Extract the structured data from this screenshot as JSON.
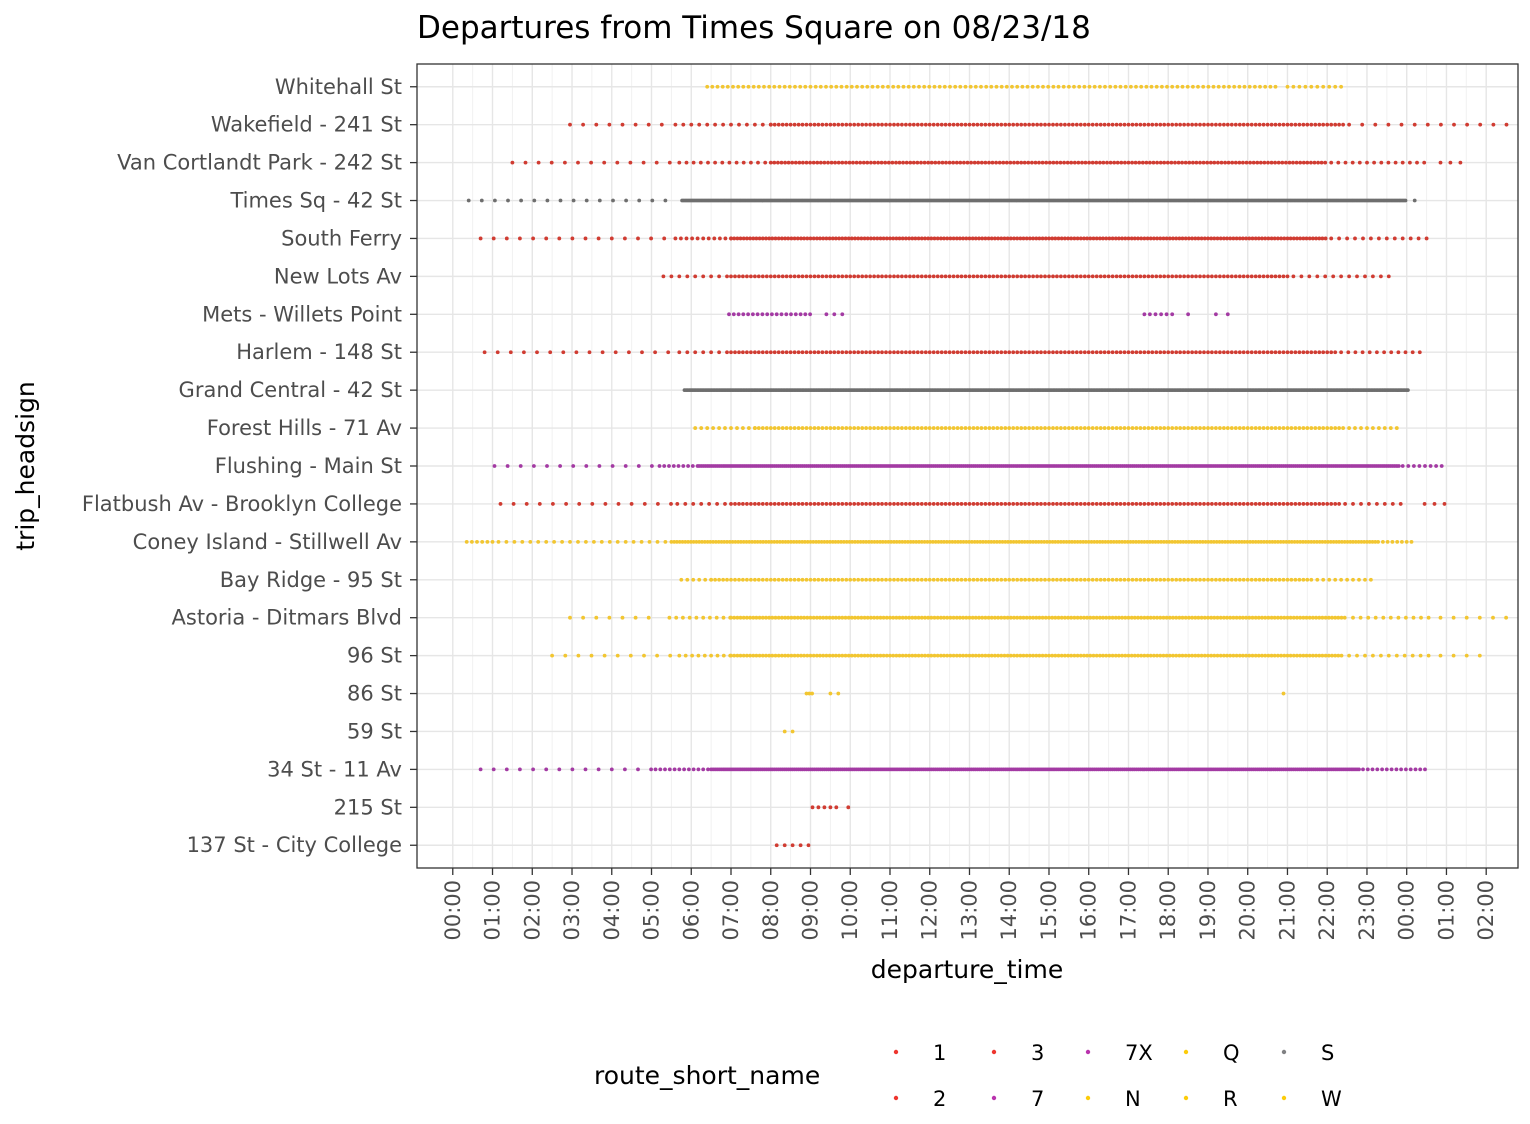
{
  "chart_data": {
    "type": "scatter",
    "title": "Departures from Times Square on 08/23/18",
    "xlabel": "departure_time",
    "ylabel": "trip_headsign",
    "x_unit": "hours",
    "xlim": [
      -0.9,
      26.8
    ],
    "x_ticks": [
      0,
      1,
      2,
      3,
      4,
      5,
      6,
      7,
      8,
      9,
      10,
      11,
      12,
      13,
      14,
      15,
      16,
      17,
      18,
      19,
      20,
      21,
      22,
      23,
      24,
      25,
      26
    ],
    "x_tick_labels": [
      "00:00",
      "01:00",
      "02:00",
      "03:00",
      "04:00",
      "05:00",
      "06:00",
      "07:00",
      "08:00",
      "09:00",
      "10:00",
      "11:00",
      "12:00",
      "13:00",
      "14:00",
      "15:00",
      "16:00",
      "17:00",
      "18:00",
      "19:00",
      "20:00",
      "21:00",
      "22:00",
      "23:00",
      "00:00",
      "01:00",
      "02:00"
    ],
    "categories": [
      "137 St - City College",
      "215 St",
      "34 St - 11 Av",
      "59 St",
      "86 St",
      "96 St",
      "Astoria - Ditmars Blvd",
      "Bay Ridge - 95 St",
      "Coney Island - Stillwell Av",
      "Flatbush Av - Brooklyn College",
      "Flushing - Main St",
      "Forest Hills - 71 Av",
      "Grand Central - 42 St",
      "Harlem - 148 St",
      "Mets - Willets Point",
      "New Lots Av",
      "South Ferry",
      "Times Sq - 42 St",
      "Van Cortlandt Park - 242 St",
      "Wakefield - 241 St",
      "Whitehall St"
    ],
    "grid": true,
    "legend_position": "bottom",
    "legend": {
      "title": "route_short_name",
      "entries": [
        {
          "name": "1",
          "color": "#EE352E"
        },
        {
          "name": "2",
          "color": "#EE352E"
        },
        {
          "name": "3",
          "color": "#EE352E"
        },
        {
          "name": "7",
          "color": "#B933AD"
        },
        {
          "name": "7X",
          "color": "#B933AD"
        },
        {
          "name": "N",
          "color": "#FCCC0A"
        },
        {
          "name": "Q",
          "color": "#FCCC0A"
        },
        {
          "name": "R",
          "color": "#FCCC0A"
        },
        {
          "name": "S",
          "color": "#808183"
        },
        {
          "name": "W",
          "color": "#FCCC0A"
        }
      ]
    },
    "series": [
      {
        "category": "Whitehall St",
        "color": "#F2C631",
        "segments": [
          {
            "start": 6.4,
            "end": 20.8,
            "step": 0.13
          },
          {
            "start": 21.0,
            "end": 22.4,
            "step": 0.15
          }
        ]
      },
      {
        "category": "Wakefield - 241 St",
        "color": "#D03C32",
        "segments": [
          {
            "start": 2.95,
            "end": 5.45,
            "step": 0.33
          },
          {
            "start": 5.6,
            "end": 8.0,
            "step": 0.2
          },
          {
            "start": 8.0,
            "end": 22.4,
            "step": 0.1
          },
          {
            "start": 22.55,
            "end": 26.65,
            "step": 0.33
          }
        ]
      },
      {
        "category": "Van Cortlandt Park - 242 St",
        "color": "#D03C32",
        "segments": [
          {
            "start": 1.5,
            "end": 5.5,
            "step": 0.33
          },
          {
            "start": 5.7,
            "end": 8.0,
            "step": 0.18
          },
          {
            "start": 8.0,
            "end": 22.0,
            "step": 0.09
          },
          {
            "start": 22.1,
            "end": 24.6,
            "step": 0.18
          },
          {
            "start": 24.85,
            "end": 25.35,
            "step": 0.25
          }
        ]
      },
      {
        "category": "Times Sq - 42 St",
        "color": "#6E6E6E",
        "segments": [
          {
            "start": 0.4,
            "end": 5.5,
            "step": 0.33
          },
          {
            "start": 5.77,
            "end": 23.98,
            "step": 0.04
          },
          {
            "start": 24.2,
            "end": 24.2,
            "step": 1
          }
        ]
      },
      {
        "category": "South Ferry",
        "color": "#D03C32",
        "segments": [
          {
            "start": 0.7,
            "end": 5.4,
            "step": 0.33
          },
          {
            "start": 5.6,
            "end": 7.0,
            "step": 0.14
          },
          {
            "start": 7.0,
            "end": 22.0,
            "step": 0.08
          },
          {
            "start": 22.1,
            "end": 24.5,
            "step": 0.2
          }
        ]
      },
      {
        "category": "New Lots Av",
        "color": "#D03C32",
        "segments": [
          {
            "start": 5.3,
            "end": 7.0,
            "step": 0.2
          },
          {
            "start": 7.0,
            "end": 21.0,
            "step": 0.1
          },
          {
            "start": 21.15,
            "end": 23.55,
            "step": 0.2
          }
        ]
      },
      {
        "category": "Mets - Willets Point",
        "color": "#A33AA3",
        "segments": [
          {
            "start": 6.95,
            "end": 9.0,
            "step": 0.12
          },
          {
            "start": 9.4,
            "end": 9.8,
            "step": 0.2
          },
          {
            "start": 17.4,
            "end": 18.1,
            "step": 0.14
          },
          {
            "start": 18.5,
            "end": 18.5,
            "step": 1
          },
          {
            "start": 19.2,
            "end": 19.5,
            "step": 0.3
          }
        ]
      },
      {
        "category": "Harlem - 148 St",
        "color": "#D03C32",
        "segments": [
          {
            "start": 0.8,
            "end": 5.5,
            "step": 0.33
          },
          {
            "start": 5.7,
            "end": 7.0,
            "step": 0.2
          },
          {
            "start": 7.0,
            "end": 22.2,
            "step": 0.1
          },
          {
            "start": 22.35,
            "end": 24.45,
            "step": 0.18
          }
        ]
      },
      {
        "category": "Grand Central - 42 St",
        "color": "#6E6E6E",
        "segments": [
          {
            "start": 5.83,
            "end": 24.05,
            "step": 0.04
          }
        ]
      },
      {
        "category": "Forest Hills - 71 Av",
        "color": "#F2C631",
        "segments": [
          {
            "start": 6.1,
            "end": 7.6,
            "step": 0.15
          },
          {
            "start": 7.6,
            "end": 22.4,
            "step": 0.1
          },
          {
            "start": 22.55,
            "end": 23.85,
            "step": 0.15
          }
        ]
      },
      {
        "category": "Flushing - Main St",
        "color": "#A33AA3",
        "segments": [
          {
            "start": 1.05,
            "end": 5.1,
            "step": 0.33
          },
          {
            "start": 5.2,
            "end": 6.2,
            "step": 0.12
          },
          {
            "start": 6.2,
            "end": 23.8,
            "step": 0.05
          },
          {
            "start": 23.9,
            "end": 25.0,
            "step": 0.14
          }
        ]
      },
      {
        "category": "Flatbush Av - Brooklyn College",
        "color": "#D03C32",
        "segments": [
          {
            "start": 1.2,
            "end": 5.5,
            "step": 0.33
          },
          {
            "start": 5.65,
            "end": 7.0,
            "step": 0.2
          },
          {
            "start": 7.0,
            "end": 22.3,
            "step": 0.1
          },
          {
            "start": 22.45,
            "end": 24.0,
            "step": 0.2
          },
          {
            "start": 24.45,
            "end": 24.95,
            "step": 0.25
          }
        ]
      },
      {
        "category": "Coney Island - Stillwell Av",
        "color": "#F2C631",
        "segments": [
          {
            "start": 0.35,
            "end": 1.0,
            "step": 0.13
          },
          {
            "start": 1.15,
            "end": 5.5,
            "step": 0.2
          },
          {
            "start": 5.5,
            "end": 23.3,
            "step": 0.07
          },
          {
            "start": 23.4,
            "end": 24.2,
            "step": 0.12
          }
        ]
      },
      {
        "category": "Bay Ridge - 95 St",
        "color": "#F2C631",
        "segments": [
          {
            "start": 5.75,
            "end": 6.5,
            "step": 0.15
          },
          {
            "start": 6.5,
            "end": 21.5,
            "step": 0.1
          },
          {
            "start": 21.6,
            "end": 23.1,
            "step": 0.15
          }
        ]
      },
      {
        "category": "Astoria - Ditmars Blvd",
        "color": "#F2C631",
        "segments": [
          {
            "start": 2.95,
            "end": 5.2,
            "step": 0.33
          },
          {
            "start": 5.45,
            "end": 7.0,
            "step": 0.17
          },
          {
            "start": 7.0,
            "end": 22.5,
            "step": 0.08
          },
          {
            "start": 22.65,
            "end": 24.55,
            "step": 0.19
          },
          {
            "start": 24.85,
            "end": 26.65,
            "step": 0.33
          }
        ]
      },
      {
        "category": "96 St",
        "color": "#F2C631",
        "segments": [
          {
            "start": 2.5,
            "end": 5.5,
            "step": 0.33
          },
          {
            "start": 5.7,
            "end": 7.0,
            "step": 0.16
          },
          {
            "start": 7.0,
            "end": 22.4,
            "step": 0.08
          },
          {
            "start": 22.55,
            "end": 24.55,
            "step": 0.2
          },
          {
            "start": 24.85,
            "end": 26.15,
            "step": 0.33
          }
        ]
      },
      {
        "category": "86 St",
        "color": "#F2C631",
        "segments": [
          {
            "start": 8.9,
            "end": 9.05,
            "step": 0.07
          },
          {
            "start": 9.5,
            "end": 9.7,
            "step": 0.2
          },
          {
            "start": 20.9,
            "end": 20.9,
            "step": 1
          }
        ]
      },
      {
        "category": "59 St",
        "color": "#F2C631",
        "segments": [
          {
            "start": 8.35,
            "end": 8.55,
            "step": 0.2
          }
        ]
      },
      {
        "category": "34 St - 11 Av",
        "color": "#A33AA3",
        "segments": [
          {
            "start": 0.7,
            "end": 5.0,
            "step": 0.33
          },
          {
            "start": 5.1,
            "end": 6.5,
            "step": 0.12
          },
          {
            "start": 6.5,
            "end": 22.8,
            "step": 0.05
          },
          {
            "start": 22.9,
            "end": 24.5,
            "step": 0.12
          }
        ]
      },
      {
        "category": "215 St",
        "color": "#D03C32",
        "segments": [
          {
            "start": 9.05,
            "end": 9.65,
            "step": 0.15
          },
          {
            "start": 9.95,
            "end": 9.95,
            "step": 1
          }
        ]
      },
      {
        "category": "137 St - City College",
        "color": "#D03C32",
        "segments": [
          {
            "start": 8.15,
            "end": 8.95,
            "step": 0.2
          }
        ]
      }
    ]
  }
}
